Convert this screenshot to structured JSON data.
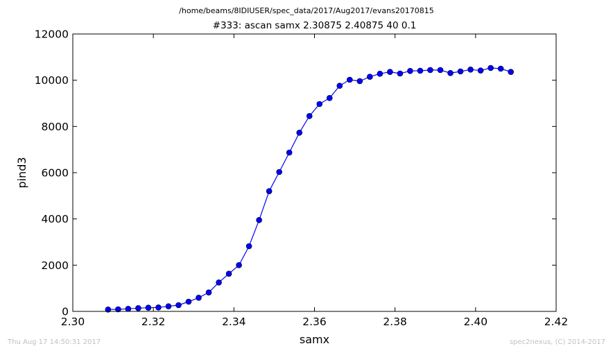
{
  "header": {
    "file_path": "/home/beams/8IDIUSER/spec_data/2017/Aug2017/evans20170815"
  },
  "footer": {
    "timestamp": "Thu Aug 17 14:50:31 2017",
    "credit": "spec2nexus, (C) 2014-2017"
  },
  "chart_data": {
    "type": "line",
    "title": "#333: ascan  samx 2.30875 2.40875  40 0.1",
    "xlabel": "samx",
    "ylabel": "pind3",
    "xlim": [
      2.3,
      2.42
    ],
    "ylim": [
      0,
      12000
    ],
    "xticks": [
      "2.30",
      "2.32",
      "2.34",
      "2.36",
      "2.38",
      "2.40",
      "2.42"
    ],
    "yticks": [
      "0",
      "2000",
      "4000",
      "6000",
      "8000",
      "10000",
      "12000"
    ],
    "grid": false,
    "marker": "circle",
    "color": "#0000ff",
    "series": [
      {
        "x": [
          2.30875,
          2.31125,
          2.31375,
          2.31625,
          2.31875,
          2.32125,
          2.32375,
          2.32625,
          2.32875,
          2.33125,
          2.33375,
          2.33625,
          2.33875,
          2.34125,
          2.34375,
          2.34625,
          2.34875,
          2.35125,
          2.35375,
          2.35625,
          2.35875,
          2.36125,
          2.36375,
          2.36625,
          2.36875,
          2.37125,
          2.37375,
          2.37625,
          2.37875,
          2.38125,
          2.38375,
          2.38625,
          2.38875,
          2.39125,
          2.39375,
          2.39625,
          2.39875,
          2.40125,
          2.40375,
          2.40625,
          2.40875
        ],
        "y": [
          80,
          90,
          110,
          140,
          160,
          170,
          220,
          270,
          420,
          590,
          820,
          1250,
          1630,
          2000,
          2820,
          3950,
          5200,
          6030,
          6870,
          7730,
          8450,
          8970,
          9230,
          9760,
          10020,
          9960,
          10150,
          10280,
          10360,
          10290,
          10400,
          10410,
          10440,
          10440,
          10310,
          10380,
          10460,
          10420,
          10530,
          10500,
          10360
        ]
      }
    ]
  }
}
